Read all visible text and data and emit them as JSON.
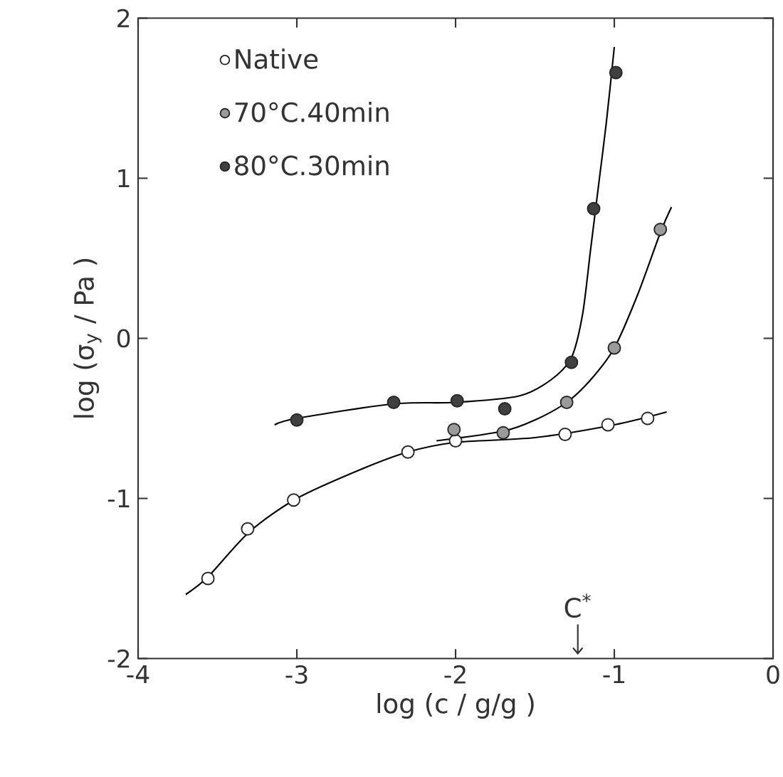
{
  "chart_data": {
    "type": "scatter",
    "xlabel": "log (c / g/g )",
    "ylabel": "log (σ$_{y}$ / Pa )",
    "xlim": [
      -4,
      0
    ],
    "ylim": [
      -2,
      2
    ],
    "xticks": [
      -4,
      -3,
      -2,
      -1,
      0
    ],
    "yticks": [
      -2,
      -1,
      0,
      1,
      2
    ],
    "legend": "top left",
    "marker": "circle",
    "ref_lines": [
      {
        "axis": "x",
        "value": -1.23,
        "label": "C$^{*}$"
      }
    ],
    "series": [
      {
        "name": "Native",
        "color": "#ffffff",
        "x": [
          -3.56,
          -3.31,
          -3.02,
          -2.3,
          -2.0,
          -1.31,
          -1.04,
          -0.79
        ],
        "values": [
          -1.5,
          -1.19,
          -1.01,
          -0.71,
          -0.64,
          -0.6,
          -0.54,
          -0.5
        ]
      },
      {
        "name": "70°C.40min",
        "color": "#9a9a9a",
        "x": [
          -2.01,
          -1.7,
          -1.3,
          -1.0,
          -0.71
        ],
        "values": [
          -0.57,
          -0.59,
          -0.4,
          -0.06,
          0.68
        ]
      },
      {
        "name": "80°C.30min",
        "color": "#404040",
        "x": [
          -3.0,
          -2.39,
          -1.99,
          -1.69,
          -1.27,
          -1.13,
          -0.99
        ],
        "values": [
          -0.51,
          -0.4,
          -0.39,
          -0.44,
          -0.15,
          0.81,
          1.66
        ]
      },
      {
        "type": "line",
        "color": "#000000",
        "marker": "none",
        "line_style": "solid",
        "x": [
          -3.7,
          -3.56,
          -3.3,
          -3.0,
          -2.6,
          -2.3,
          -2.0,
          -1.5,
          -1.0,
          -0.67
        ],
        "values": [
          -1.6,
          -1.49,
          -1.21,
          -1.0,
          -0.82,
          -0.71,
          -0.65,
          -0.62,
          -0.54,
          -0.46
        ]
      },
      {
        "type": "line",
        "color": "#000000",
        "marker": "none",
        "line_style": "solid",
        "x": [
          -2.12,
          -1.7,
          -1.5,
          -1.3,
          -1.15,
          -1.0,
          -0.85,
          -0.71,
          -0.64
        ],
        "values": [
          -0.64,
          -0.58,
          -0.51,
          -0.4,
          -0.26,
          -0.06,
          0.28,
          0.66,
          0.82
        ]
      },
      {
        "type": "line",
        "color": "#000000",
        "marker": "none",
        "line_style": "solid",
        "x": [
          -3.14,
          -3.0,
          -2.4,
          -2.0,
          -1.6,
          -1.4,
          -1.27,
          -1.2,
          -1.15,
          -1.1,
          -1.05,
          -1.0
        ],
        "values": [
          -0.54,
          -0.5,
          -0.41,
          -0.4,
          -0.36,
          -0.26,
          -0.12,
          0.15,
          0.55,
          0.95,
          1.35,
          1.82
        ]
      }
    ]
  }
}
